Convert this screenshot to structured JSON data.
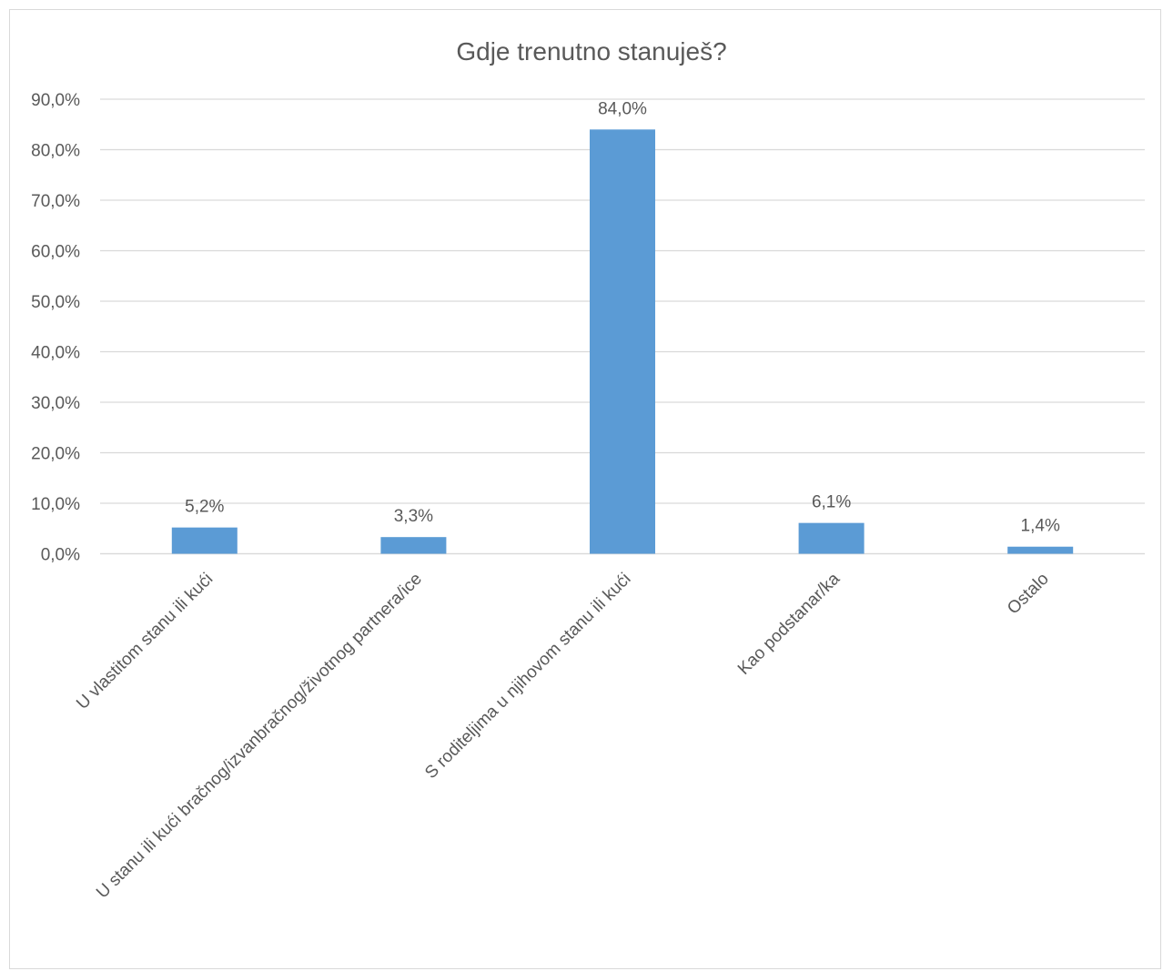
{
  "chart_data": {
    "type": "bar",
    "title": "Gdje trenutno stanuješ?",
    "xlabel": "",
    "ylabel": "",
    "categories": [
      "U vlastitom stanu ili kući",
      "U stanu ili kući bračnog/izvanbračnog/životnog partnera/ice",
      "S roditeljima u njihovom stanu ili kući",
      "Kao podstanar/ka",
      "Ostalo"
    ],
    "values": [
      5.2,
      3.3,
      84.0,
      6.1,
      1.4
    ],
    "value_labels": [
      "5,2%",
      "3,3%",
      "84,0%",
      "6,1%",
      "1,4%"
    ],
    "ylim": [
      0,
      90
    ],
    "y_ticks": [
      0,
      10,
      20,
      30,
      40,
      50,
      60,
      70,
      80,
      90
    ],
    "y_tick_labels": [
      "0,0%",
      "10,0%",
      "20,0%",
      "30,0%",
      "40,0%",
      "50,0%",
      "60,0%",
      "70,0%",
      "80,0%",
      "90,0%"
    ],
    "grid": true,
    "legend": "none",
    "colors": {
      "bar": "#5b9bd5",
      "grid": "#d9d9d9",
      "text": "#595959",
      "title": "#595959"
    }
  }
}
